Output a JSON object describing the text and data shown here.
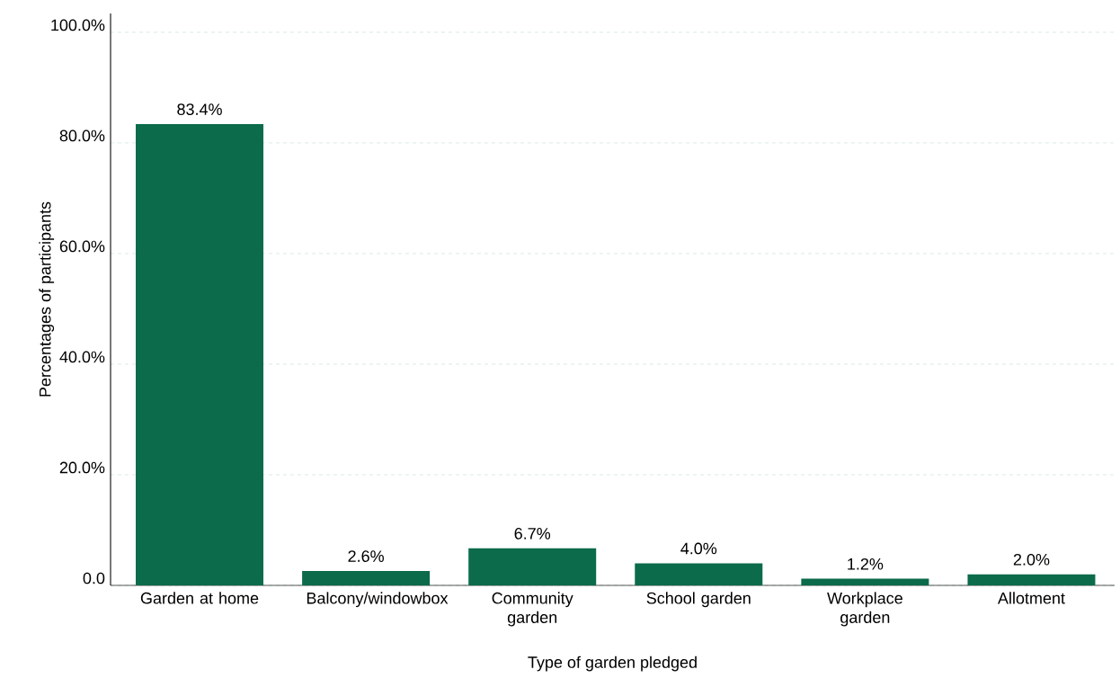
{
  "chart_data": {
    "type": "bar",
    "xlabel": "Type of garden pledged",
    "ylabel": "Percentages of participants",
    "categories": [
      "Garden at home",
      "Balcony/windowbox",
      "Community garden",
      "School garden",
      "Workplace garden",
      "Allotment"
    ],
    "values": [
      83.4,
      2.6,
      6.7,
      4.0,
      1.2,
      2.0
    ],
    "value_labels": [
      "83.4%",
      "2.6%",
      "6.7%",
      "4.0%",
      "1.2%",
      "2.0%"
    ],
    "color": "#0b6b4a",
    "ylim": [
      0,
      103.4
    ],
    "yticks": [
      {
        "value": 0,
        "label": "0.0"
      },
      {
        "value": 20,
        "label": "20.0%"
      },
      {
        "value": 40,
        "label": "40.0%"
      },
      {
        "value": 60,
        "label": "60.0%"
      },
      {
        "value": 80,
        "label": "80.0%"
      },
      {
        "value": 100,
        "label": "100.0%"
      }
    ],
    "grid": "y"
  }
}
